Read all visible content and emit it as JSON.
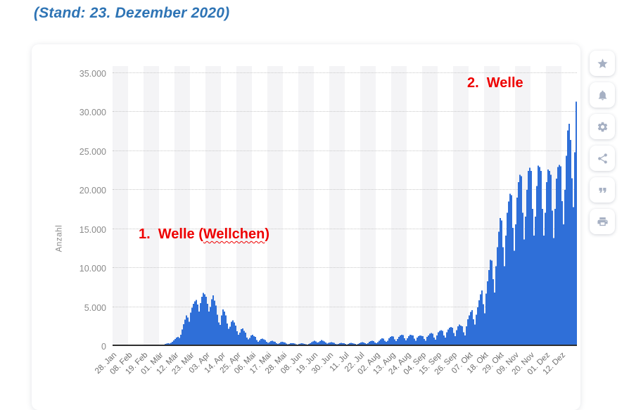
{
  "page": {
    "heading": "(Stand: 23. Dezember 2020)"
  },
  "annotations": {
    "wave1_prefix": "1.  Welle (",
    "wave1_wavy": "Wellchen",
    "wave1_suffix": ")",
    "wave2": "2.  Welle"
  },
  "toolbar": {
    "icons": [
      "star-icon",
      "bell-icon",
      "gear-icon",
      "share-icon",
      "quote-icon",
      "print-icon"
    ]
  },
  "colors": {
    "bar": "#2f6fd8",
    "heading_blue": "#2e74b5",
    "annotation_red": "#ee0000",
    "icon_gray": "#a6b0c3",
    "axis_text": "#8a8a8a",
    "x_tick_text": "#6e6e6e",
    "baseline": "#2e2e2e",
    "band_gray": "#f4f4f6",
    "gridline": "#c9c9c9"
  },
  "chart_data": {
    "type": "bar",
    "title": "",
    "xlabel": "",
    "ylabel": "Anzahl",
    "ylim": [
      0,
      35000
    ],
    "grid": "horizontal dotted",
    "legend": "none",
    "plot_background": "alternating vertical bands",
    "y_tick_values": [
      0,
      5000,
      10000,
      15000,
      20000,
      25000,
      30000,
      35000
    ],
    "y_tick_labels": [
      "0",
      "5.000",
      "10.000",
      "15.000",
      "20.000",
      "25.000",
      "30.000",
      "35.000"
    ],
    "x_tick_labels": [
      "28. Jan",
      "08. Feb",
      "19. Feb",
      "01. Mär",
      "12. Mär",
      "23. Mär",
      "03. Apr",
      "14. Apr",
      "25. Apr",
      "06. Mai",
      "17. Mai",
      "28. Mai",
      "08. Jun",
      "19. Jun",
      "30. Jun",
      "11. Jul",
      "22. Jul",
      "02. Aug",
      "13. Aug",
      "24. Aug",
      "04. Sep",
      "15. Sep",
      "26. Sep",
      "07. Okt",
      "18. Okt",
      "29. Okt",
      "09. Nov",
      "20. Nov",
      "01. Dez",
      "12. Dez"
    ],
    "x_tick_interval_days": 11,
    "first_day_label": "28. Jan",
    "values_are_estimates": true,
    "daily_values": [
      4,
      2,
      3,
      2,
      2,
      1,
      2,
      1,
      1,
      0,
      1,
      2,
      1,
      1,
      1,
      2,
      1,
      0,
      1,
      0,
      0,
      1,
      1,
      1,
      0,
      1,
      2,
      3,
      6,
      12,
      22,
      35,
      60,
      85,
      120,
      155,
      190,
      250,
      310,
      350,
      300,
      420,
      560,
      720,
      900,
      1060,
      1150,
      1020,
      1450,
      2100,
      2800,
      3400,
      3900,
      3650,
      3100,
      4300,
      4900,
      5400,
      5700,
      5900,
      5300,
      4400,
      5500,
      6300,
      6800,
      6600,
      6300,
      5400,
      4400,
      5000,
      6000,
      6500,
      5800,
      5200,
      4000,
      3000,
      2700,
      3900,
      4700,
      4400,
      3900,
      2900,
      2200,
      2500,
      3100,
      3300,
      3000,
      2600,
      1900,
      1450,
      1700,
      2150,
      2250,
      1950,
      1700,
      1100,
      850,
      1050,
      1350,
      1450,
      1250,
      1150,
      780,
      560,
      700,
      900,
      950,
      850,
      760,
      520,
      390,
      480,
      620,
      680,
      600,
      520,
      380,
      290,
      380,
      480,
      530,
      490,
      430,
      310,
      240,
      280,
      340,
      380,
      360,
      330,
      240,
      190,
      260,
      330,
      360,
      330,
      290,
      210,
      170,
      290,
      380,
      480,
      580,
      670,
      580,
      430,
      480,
      620,
      770,
      680,
      580,
      430,
      330,
      390,
      440,
      480,
      440,
      390,
      290,
      220,
      290,
      360,
      400,
      380,
      340,
      250,
      190,
      270,
      340,
      390,
      360,
      330,
      250,
      190,
      290,
      380,
      430,
      480,
      460,
      340,
      270,
      380,
      530,
      640,
      690,
      630,
      440,
      340,
      480,
      690,
      870,
      980,
      960,
      690,
      530,
      690,
      980,
      1160,
      1260,
      1210,
      870,
      640,
      880,
      1170,
      1360,
      1450,
      1400,
      980,
      730,
      980,
      1270,
      1450,
      1410,
      1360,
      930,
      690,
      1080,
      1270,
      1360,
      1310,
      1260,
      880,
      690,
      1170,
      1370,
      1560,
      1650,
      1560,
      1080,
      830,
      1370,
      1760,
      1950,
      2050,
      1950,
      1370,
      1080,
      1760,
      2140,
      2340,
      2440,
      2340,
      1660,
      1270,
      2050,
      2530,
      2730,
      2630,
      2530,
      1760,
      1370,
      2530,
      3420,
      3900,
      4390,
      4580,
      3420,
      2730,
      4000,
      4970,
      5850,
      6630,
      7120,
      5360,
      4190,
      6730,
      8290,
      9750,
      11020,
      10930,
      8580,
      6830,
      10240,
      12680,
      14630,
      16380,
      16090,
      12680,
      10240,
      14140,
      17070,
      18530,
      19510,
      19310,
      15120,
      12190,
      15600,
      19020,
      20970,
      21940,
      21750,
      17070,
      13650,
      16580,
      19990,
      22430,
      22820,
      22430,
      17560,
      14140,
      16580,
      20480,
      23120,
      22920,
      22430,
      17560,
      14140,
      17070,
      20970,
      22630,
      22430,
      21940,
      17360,
      13850,
      17560,
      21460,
      22920,
      23210,
      23010,
      18540,
      15600,
      19990,
      24380,
      27600,
      28480,
      26400,
      21500,
      17800,
      24800,
      31300,
      22400
    ]
  }
}
